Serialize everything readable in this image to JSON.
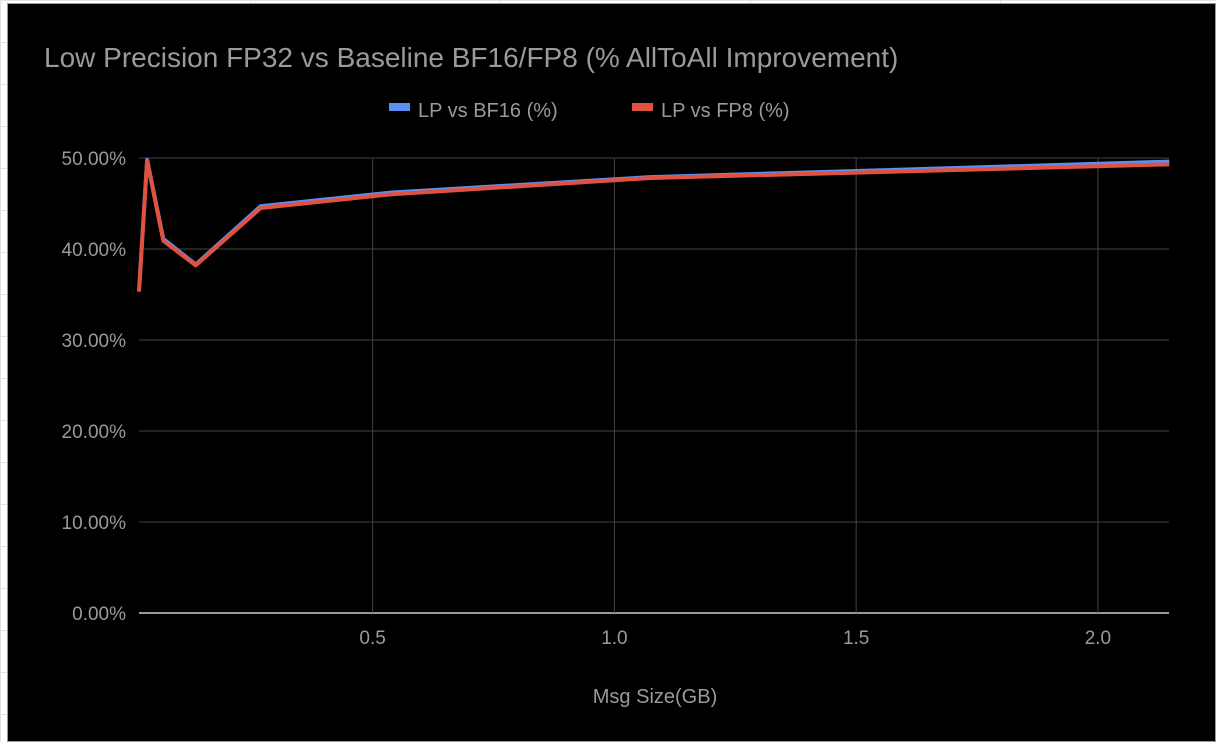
{
  "chart_data": {
    "type": "line",
    "title": "Low Precision FP32 vs Baseline BF16/FP8 (% AllToAll Improvement)",
    "xlabel": "Msg Size(GB)",
    "ylabel": "",
    "xlim": [
      0.0168,
      2.147
    ],
    "ylim": [
      0,
      50
    ],
    "xticks": [
      0.5,
      1.0,
      1.5,
      2.0
    ],
    "xtick_labels": [
      "0.5",
      "1.0",
      "1.5",
      "2.0"
    ],
    "yticks": [
      0,
      10,
      20,
      30,
      40,
      50
    ],
    "ytick_labels": [
      "0.00%",
      "10.00%",
      "20.00%",
      "30.00%",
      "40.00%",
      "50.00%"
    ],
    "grid": true,
    "legend_position": "top",
    "x": [
      0.0168,
      0.0336,
      0.0671,
      0.1342,
      0.2684,
      0.5369,
      1.0737,
      2.1475
    ],
    "series": [
      {
        "name": "LP vs BF16 (%)",
        "color": "#5b8ff0",
        "values": [
          35.4,
          49.8,
          41.1,
          38.3,
          44.7,
          46.2,
          47.9,
          49.6
        ]
      },
      {
        "name": "LP vs FP8 (%)",
        "color": "#e0513f",
        "values": [
          35.3,
          49.7,
          40.9,
          38.2,
          44.5,
          46.0,
          47.8,
          49.3
        ]
      }
    ]
  }
}
